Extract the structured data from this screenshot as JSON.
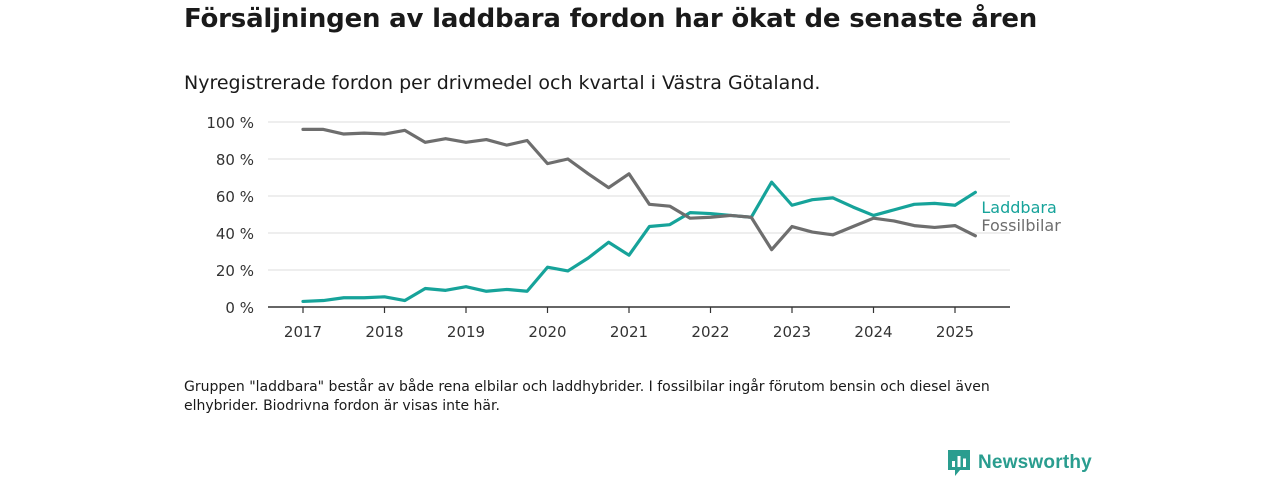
{
  "title": "Försäljningen av laddbara fordon har ökat de senaste åren",
  "subtitle": "Nyregistrerade fordon per drivmedel och kvartal i Västra Götaland.",
  "note": "Gruppen \"laddbara\" består av både rena elbilar och laddhybrider. I fossilbilar ingår förutom bensin och diesel även elhybrider. Biodrivna fordon är visas inte här.",
  "brand": {
    "name": "Newsworthy",
    "icon": "newsworthy-logo-icon"
  },
  "colors": {
    "laddbara": "#16a39a",
    "fossil": "#6e6e6e",
    "grid": "#dcdcdc",
    "axis": "#333333"
  },
  "chart_data": {
    "type": "line",
    "x_unit": "quarter",
    "x": [
      "2017 Q1",
      "2017 Q2",
      "2017 Q3",
      "2017 Q4",
      "2018 Q1",
      "2018 Q2",
      "2018 Q3",
      "2018 Q4",
      "2019 Q1",
      "2019 Q2",
      "2019 Q3",
      "2019 Q4",
      "2020 Q1",
      "2020 Q2",
      "2020 Q3",
      "2020 Q4",
      "2021 Q1",
      "2021 Q2",
      "2021 Q3",
      "2021 Q4",
      "2022 Q1",
      "2022 Q2",
      "2022 Q3",
      "2022 Q4",
      "2023 Q1",
      "2023 Q2",
      "2023 Q3",
      "2023 Q4",
      "2024 Q1",
      "2024 Q2",
      "2024 Q3",
      "2024 Q4",
      "2025 Q1",
      "2025 Q2"
    ],
    "series": [
      {
        "name": "Laddbara",
        "color": "#16a39a",
        "values": [
          3,
          3.5,
          5,
          5,
          5.5,
          3.5,
          10,
          9,
          11,
          8.5,
          9.5,
          8.5,
          21.5,
          19.5,
          26.5,
          35,
          28,
          43.5,
          44.5,
          51,
          50.5,
          49.5,
          48.5,
          67.5,
          55,
          58,
          59,
          54,
          49.5,
          52.5,
          55.5,
          56,
          55,
          62
        ]
      },
      {
        "name": "Fossilbilar",
        "color": "#6e6e6e",
        "values": [
          96,
          96,
          93.5,
          94,
          93.5,
          95.5,
          89,
          91,
          89,
          90.5,
          87.5,
          90,
          77.5,
          80,
          72,
          64.5,
          72,
          55.5,
          54.5,
          48,
          48.5,
          49.5,
          48.5,
          31,
          43.5,
          40.5,
          39,
          43.5,
          48,
          46.5,
          44,
          43,
          44,
          38.5
        ]
      }
    ],
    "xticks": [
      "2017",
      "2018",
      "2019",
      "2020",
      "2021",
      "2022",
      "2023",
      "2024",
      "2025"
    ],
    "yticks": [
      "0 %",
      "20 %",
      "40 %",
      "60 %",
      "80 %",
      "100 %"
    ],
    "ylim": [
      0,
      100
    ],
    "grid": "horizontal",
    "legend": "direct labels at line ends"
  }
}
